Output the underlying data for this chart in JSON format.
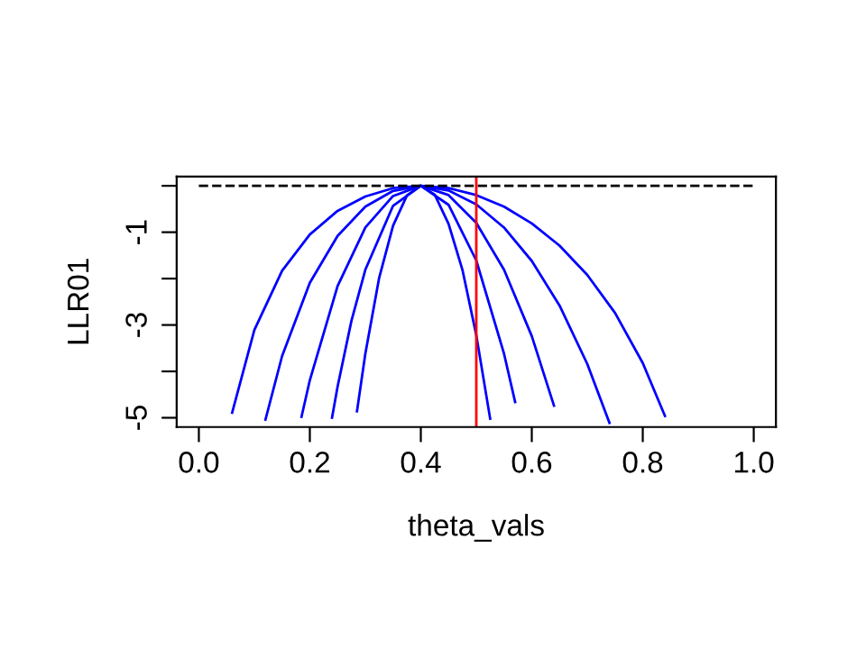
{
  "chart_data": {
    "type": "line",
    "xlabel": "theta_vals",
    "ylabel": "LLR01",
    "xlim": [
      -0.04,
      1.04
    ],
    "ylim": [
      -5.2,
      0.2
    ],
    "xticks": [
      {
        "value": 0,
        "label": "0.0"
      },
      {
        "value": 0.2,
        "label": "0.2"
      },
      {
        "value": 0.4,
        "label": "0.4"
      },
      {
        "value": 0.6,
        "label": "0.6"
      },
      {
        "value": 0.8,
        "label": "0.8"
      },
      {
        "value": 1,
        "label": "1.0"
      }
    ],
    "yticks": [
      {
        "value": -5,
        "label": "-5"
      },
      {
        "value": -4,
        "label": null
      },
      {
        "value": -3,
        "label": "-3"
      },
      {
        "value": -2,
        "label": null
      },
      {
        "value": -1,
        "label": "-1"
      },
      {
        "value": 0,
        "label": null
      }
    ],
    "grid": false,
    "legend": false,
    "marker": "none",
    "series": [
      {
        "color": "#0000ff",
        "x": [
          0.06,
          0.1,
          0.15,
          0.2,
          0.25,
          0.3,
          0.35,
          0.4,
          0.45,
          0.5,
          0.55,
          0.6,
          0.65,
          0.7,
          0.75,
          0.8,
          0.84
        ],
        "values": [
          -4.89,
          -3.11,
          -1.83,
          -1.05,
          -0.54,
          -0.23,
          -0.05,
          0,
          -0.05,
          -0.2,
          -0.45,
          -0.81,
          -1.29,
          -1.92,
          -2.74,
          -3.82,
          -4.96
        ]
      },
      {
        "color": "#0000ff",
        "x": [
          0.12,
          0.15,
          0.2,
          0.25,
          0.3,
          0.35,
          0.4,
          0.45,
          0.5,
          0.55,
          0.6,
          0.65,
          0.7,
          0.74
        ],
        "values": [
          -5.04,
          -3.67,
          -2.09,
          -1.08,
          -0.45,
          -0.11,
          0,
          -0.1,
          -0.4,
          -0.9,
          -1.62,
          -2.58,
          -3.84,
          -5.11
        ]
      },
      {
        "color": "#0000ff",
        "x": [
          0.185,
          0.2,
          0.25,
          0.3,
          0.35,
          0.4,
          0.45,
          0.5,
          0.55,
          0.6,
          0.64
        ],
        "values": [
          -4.98,
          -4.19,
          -2.16,
          -0.9,
          -0.22,
          0,
          -0.2,
          -0.8,
          -1.81,
          -3.24,
          -4.74
        ]
      },
      {
        "color": "#0000ff",
        "x": [
          0.24,
          0.25,
          0.275,
          0.3,
          0.35,
          0.4,
          0.45,
          0.5,
          0.55,
          0.57
        ],
        "values": [
          -5.0,
          -4.33,
          -2.91,
          -1.81,
          -0.43,
          0,
          -0.41,
          -1.61,
          -3.62,
          -4.66
        ]
      },
      {
        "color": "#0000ff",
        "x": [
          0.285,
          0.3,
          0.325,
          0.35,
          0.375,
          0.4,
          0.425,
          0.45,
          0.475,
          0.5,
          0.525
        ],
        "values": [
          -4.86,
          -3.62,
          -1.98,
          -0.86,
          -0.21,
          0,
          -0.19,
          -0.82,
          -1.81,
          -3.22,
          -5.02
        ]
      },
      {
        "color": "#000000",
        "line_style": "dashed",
        "x": [
          0,
          1
        ],
        "values": [
          0,
          0
        ]
      }
    ],
    "ref_lines": [
      {
        "axis": "x",
        "value": 0.5,
        "color": "#ff0000"
      }
    ]
  }
}
